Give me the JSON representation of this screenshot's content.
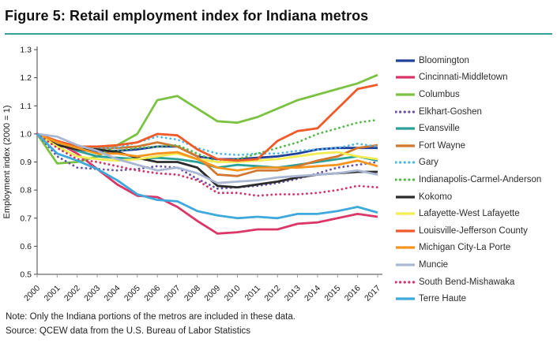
{
  "title": "Figure 5: Retail employment index for Indiana metros",
  "accent_color": "#36a099",
  "notes": {
    "note": "Note: Only the Indiana portions of the metros are included in these data.",
    "source": "Source: QCEW data from the U.S. Bureau of Labor Statistics"
  },
  "chart_data": {
    "type": "line",
    "ylabel": "Employment index (2000 = 1)",
    "xlabel": "",
    "ylim": [
      0.5,
      1.3
    ],
    "ytick_step": 0.1,
    "grid": false,
    "legend_position": "right",
    "x": [
      2000,
      2001,
      2002,
      2003,
      2004,
      2005,
      2006,
      2007,
      2008,
      2009,
      2010,
      2011,
      2012,
      2013,
      2014,
      2015,
      2016,
      2017
    ],
    "series": [
      {
        "name": "Bloomington",
        "color": "#21409a",
        "style": "solid",
        "values": [
          1.0,
          0.96,
          0.945,
          0.935,
          0.94,
          0.945,
          0.955,
          0.955,
          0.92,
          0.91,
          0.91,
          0.915,
          0.92,
          0.93,
          0.945,
          0.95,
          0.95,
          0.95
        ]
      },
      {
        "name": "Cincinnati-Middletown",
        "color": "#da3768",
        "style": "solid",
        "values": [
          1.0,
          0.97,
          0.93,
          0.875,
          0.82,
          0.78,
          0.775,
          0.74,
          0.69,
          0.645,
          0.65,
          0.66,
          0.66,
          0.68,
          0.685,
          0.7,
          0.715,
          0.705
        ]
      },
      {
        "name": "Columbus",
        "color": "#7cc242",
        "style": "solid",
        "values": [
          1.0,
          0.895,
          0.9,
          0.92,
          0.96,
          1.0,
          1.12,
          1.135,
          1.09,
          1.045,
          1.04,
          1.06,
          1.09,
          1.12,
          1.14,
          1.16,
          1.18,
          1.21
        ]
      },
      {
        "name": "Elkhart-Goshen",
        "color": "#6a51a1",
        "style": "dotted",
        "values": [
          1.0,
          0.92,
          0.88,
          0.875,
          0.87,
          0.875,
          0.885,
          0.88,
          0.84,
          0.805,
          0.81,
          0.815,
          0.825,
          0.84,
          0.86,
          0.88,
          0.89,
          0.9
        ]
      },
      {
        "name": "Evansville",
        "color": "#2aa198",
        "style": "solid",
        "values": [
          1.0,
          0.97,
          0.94,
          0.92,
          0.915,
          0.91,
          0.915,
          0.91,
          0.9,
          0.88,
          0.89,
          0.885,
          0.88,
          0.89,
          0.9,
          0.91,
          0.92,
          0.905
        ]
      },
      {
        "name": "Fort Wayne",
        "color": "#d2772e",
        "style": "solid",
        "values": [
          1.0,
          0.975,
          0.955,
          0.95,
          0.95,
          0.955,
          0.97,
          0.955,
          0.92,
          0.855,
          0.85,
          0.87,
          0.87,
          0.885,
          0.905,
          0.92,
          0.95,
          0.96
        ]
      },
      {
        "name": "Gary",
        "color": "#4db8e8",
        "style": "dotted",
        "values": [
          1.0,
          0.97,
          0.955,
          0.95,
          0.95,
          0.97,
          0.99,
          0.98,
          0.95,
          0.93,
          0.925,
          0.93,
          0.93,
          0.94,
          0.945,
          0.95,
          0.965,
          0.955
        ]
      },
      {
        "name": "Indianapolis-Carmel-Anderson",
        "color": "#52b848",
        "style": "dotted",
        "values": [
          1.0,
          0.96,
          0.95,
          0.945,
          0.94,
          0.95,
          0.955,
          0.96,
          0.93,
          0.9,
          0.91,
          0.93,
          0.95,
          0.97,
          1.0,
          1.02,
          1.04,
          1.05
        ]
      },
      {
        "name": "Kokomo",
        "color": "#2b2b2b",
        "style": "solid",
        "values": [
          1.0,
          0.96,
          0.945,
          0.945,
          0.935,
          0.915,
          0.9,
          0.9,
          0.88,
          0.815,
          0.81,
          0.82,
          0.83,
          0.845,
          0.855,
          0.86,
          0.865,
          0.865
        ]
      },
      {
        "name": "Lafayette-West Lafayette",
        "color": "#f3ec53",
        "style": "solid",
        "values": [
          1.0,
          0.955,
          0.92,
          0.91,
          0.905,
          0.91,
          0.92,
          0.93,
          0.91,
          0.9,
          0.9,
          0.905,
          0.91,
          0.92,
          0.93,
          0.935,
          0.92,
          0.91
        ]
      },
      {
        "name": "Louisville-Jefferson County",
        "color": "#f05a28",
        "style": "solid",
        "values": [
          1.0,
          0.975,
          0.955,
          0.955,
          0.96,
          0.97,
          1.0,
          0.995,
          0.945,
          0.91,
          0.905,
          0.91,
          0.975,
          1.01,
          1.02,
          1.09,
          1.16,
          1.175
        ]
      },
      {
        "name": "Michigan City-La Porte",
        "color": "#f7941d",
        "style": "solid",
        "values": [
          1.0,
          0.97,
          0.95,
          0.93,
          0.93,
          0.92,
          0.93,
          0.935,
          0.91,
          0.88,
          0.87,
          0.88,
          0.88,
          0.88,
          0.885,
          0.89,
          0.905,
          0.885
        ]
      },
      {
        "name": "Muncie",
        "color": "#aab7d3",
        "style": "solid",
        "values": [
          1.0,
          0.99,
          0.96,
          0.94,
          0.91,
          0.89,
          0.87,
          0.88,
          0.86,
          0.825,
          0.83,
          0.835,
          0.845,
          0.85,
          0.855,
          0.86,
          0.87,
          0.855
        ]
      },
      {
        "name": "South Bend-Mishawaka",
        "color": "#d23264",
        "style": "dotted",
        "values": [
          1.0,
          0.95,
          0.91,
          0.9,
          0.885,
          0.87,
          0.86,
          0.855,
          0.835,
          0.79,
          0.79,
          0.78,
          0.785,
          0.785,
          0.79,
          0.8,
          0.815,
          0.81
        ]
      },
      {
        "name": "Terre Haute",
        "color": "#3fa8dc",
        "style": "solid",
        "values": [
          1.0,
          0.93,
          0.905,
          0.875,
          0.835,
          0.785,
          0.765,
          0.76,
          0.725,
          0.71,
          0.7,
          0.705,
          0.7,
          0.715,
          0.715,
          0.725,
          0.74,
          0.72
        ]
      }
    ]
  }
}
